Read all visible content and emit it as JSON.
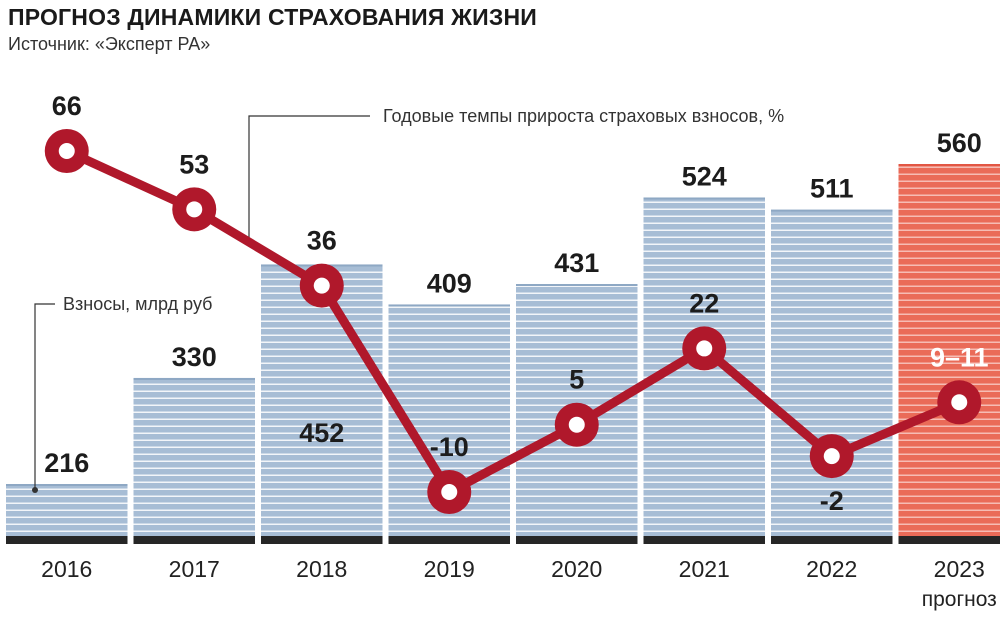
{
  "header": {
    "title": "ПРОГНОЗ ДИНАМИКИ СТРАХОВАНИЯ ЖИЗНИ",
    "source": "Источник: «Эксперт РА»"
  },
  "chart_data": {
    "type": "bar",
    "categories": [
      "2016",
      "2017",
      "2018",
      "2019",
      "2020",
      "2021",
      "2022",
      "2023"
    ],
    "category_sublabels": [
      "",
      "",
      "",
      "",
      "",
      "",
      "",
      "прогноз"
    ],
    "series": [
      {
        "name": "Взносы, млрд руб",
        "type": "bar",
        "values": [
          216,
          330,
          452,
          409,
          431,
          524,
          511,
          560
        ],
        "value_labels": [
          "216",
          "330",
          "452",
          "409",
          "431",
          "524",
          "511",
          "560"
        ],
        "color": "#a9bfd6",
        "forecast_color": "#ea6c5a"
      },
      {
        "name": "Годовые темпы прироста страховых взносов, %",
        "type": "line",
        "values": [
          66,
          53,
          36,
          -10,
          5,
          22,
          -2,
          10
        ],
        "value_labels": [
          "66",
          "53",
          "36",
          "-10",
          "5",
          "22",
          "-2",
          "9–11"
        ],
        "color": "#b0182b"
      }
    ],
    "forecast_index": 7,
    "line_scale": [
      -10,
      66
    ],
    "grid": false,
    "legend": "inline annotations"
  }
}
